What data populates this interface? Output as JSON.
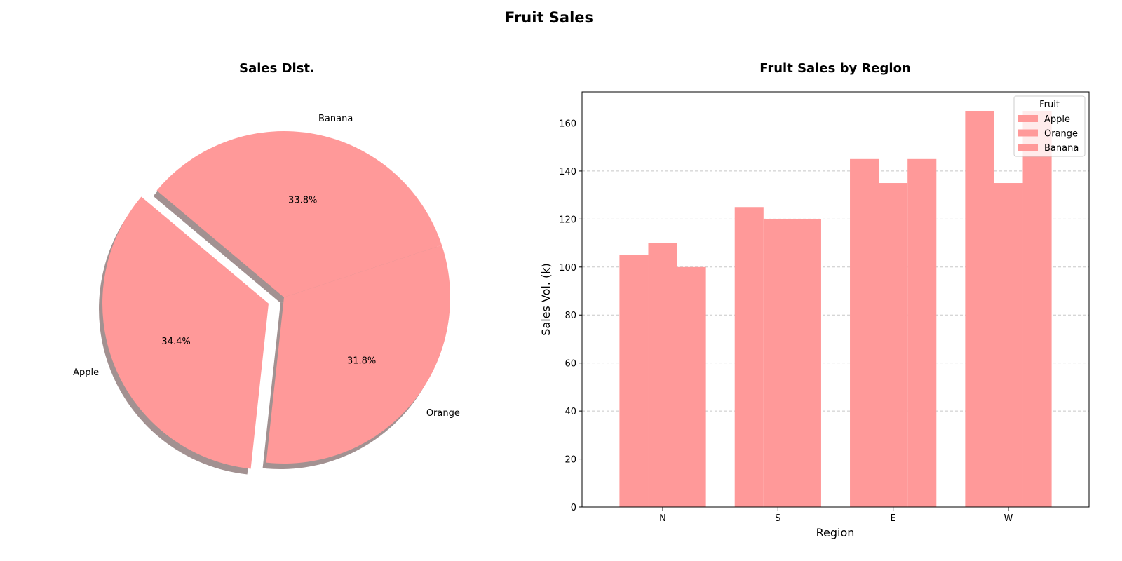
{
  "figure_title": "Fruit Sales",
  "colors": {
    "wedge": "#ff9999",
    "bar": "#ff9999",
    "shadow": "#7a6262",
    "grid": "#c8c8c8",
    "axis": "#000000"
  },
  "chart_data": [
    {
      "type": "pie",
      "title": "Sales Dist.",
      "slices": [
        {
          "label": "Apple",
          "percent_label": "34.4%",
          "value": 34.4,
          "exploded": true
        },
        {
          "label": "Orange",
          "percent_label": "31.8%",
          "value": 31.8,
          "exploded": false
        },
        {
          "label": "Banana",
          "percent_label": "33.8%",
          "value": 33.8,
          "exploded": false
        }
      ],
      "shadow": true,
      "start_angle_deg": 140
    },
    {
      "type": "bar",
      "title": "Fruit Sales by Region",
      "xlabel": "Region",
      "ylabel": "Sales Vol. (k)",
      "categories": [
        "N",
        "S",
        "E",
        "W"
      ],
      "series": [
        {
          "name": "Apple",
          "values": [
            105,
            125,
            145,
            165
          ]
        },
        {
          "name": "Orange",
          "values": [
            110,
            120,
            135,
            135
          ]
        },
        {
          "name": "Banana",
          "values": [
            100,
            120,
            145,
            165
          ]
        }
      ],
      "ylim": [
        0,
        173
      ],
      "yticks": [
        0,
        20,
        40,
        60,
        80,
        100,
        120,
        140,
        160
      ],
      "grid": "y-dashed",
      "legend": {
        "title": "Fruit",
        "placement": "top-right"
      }
    }
  ]
}
